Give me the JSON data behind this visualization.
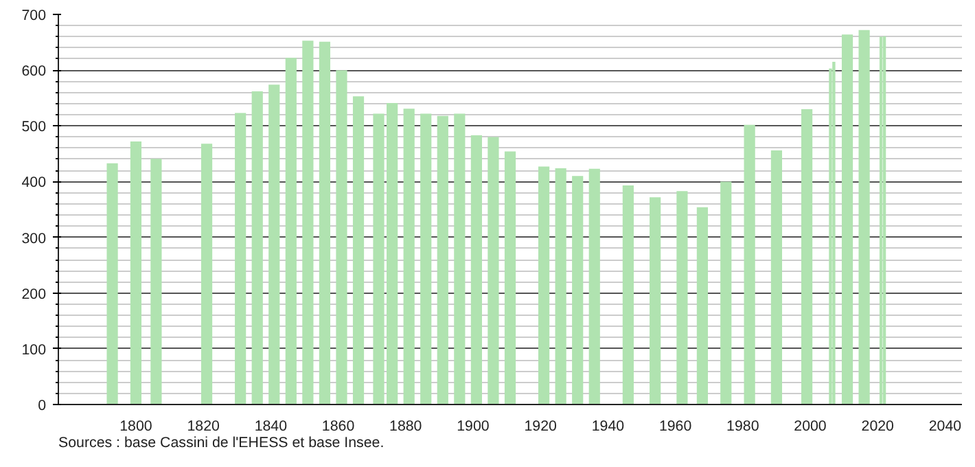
{
  "chart_data": {
    "type": "bar",
    "x": [
      1793,
      1800,
      1806,
      1821,
      1831,
      1836,
      1841,
      1846,
      1851,
      1856,
      1861,
      1866,
      1872,
      1876,
      1881,
      1886,
      1891,
      1896,
      1901,
      1906,
      1911,
      1921,
      1926,
      1931,
      1936,
      1946,
      1954,
      1962,
      1968,
      1975,
      1982,
      1990,
      1999,
      2006,
      2007,
      2011,
      2016,
      2021,
      2022
    ],
    "values": [
      433,
      472,
      441,
      468,
      523,
      562,
      574,
      622,
      653,
      651,
      600,
      553,
      522,
      541,
      531,
      522,
      518,
      522,
      483,
      480,
      454,
      427,
      424,
      410,
      423,
      393,
      372,
      383,
      354,
      400,
      502,
      456,
      530,
      603,
      615,
      664,
      672,
      660,
      661
    ],
    "color": "#b0e3b0",
    "xlim": [
      1777,
      2045
    ],
    "xticks": [
      1800,
      1820,
      1840,
      1860,
      1880,
      1900,
      1920,
      1940,
      1960,
      1980,
      2000,
      2020,
      2040
    ],
    "ylim": [
      0,
      700
    ],
    "yticks": [
      0,
      100,
      200,
      300,
      400,
      500,
      600,
      700
    ],
    "grid": "y",
    "annotations": [
      "Sources : base Cassini de l'EHESS et base Insee."
    ]
  }
}
